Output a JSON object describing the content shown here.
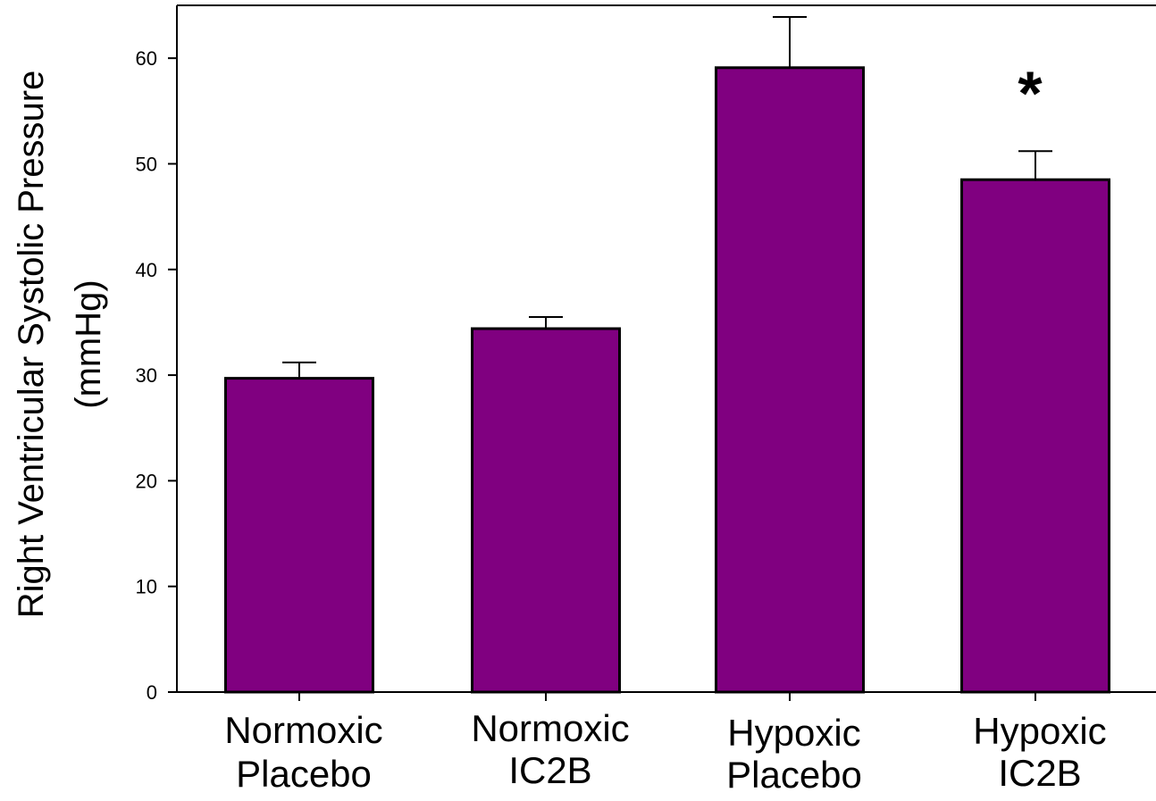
{
  "chart_data": {
    "type": "bar",
    "title": "",
    "xlabel": "",
    "ylabel_line1": "Right Ventricular Systolic Pressure",
    "ylabel_line2": "(mmHg)",
    "categories": [
      [
        "Normoxic",
        "Placebo"
      ],
      [
        "Normoxic",
        "IC2B"
      ],
      [
        "Hypoxic",
        "Placebo"
      ],
      [
        "Hypoxic",
        "IC2B"
      ]
    ],
    "values": [
      29.7,
      34.4,
      59.1,
      48.5
    ],
    "errors": [
      1.5,
      1.1,
      4.8,
      2.7
    ],
    "annotations": [
      "",
      "",
      "",
      "*"
    ],
    "ylim": [
      0,
      65
    ],
    "yticks": [
      0,
      10,
      20,
      30,
      40,
      50,
      60
    ],
    "grid": false,
    "bar_color": "#800080",
    "edge_color": "#000000"
  }
}
